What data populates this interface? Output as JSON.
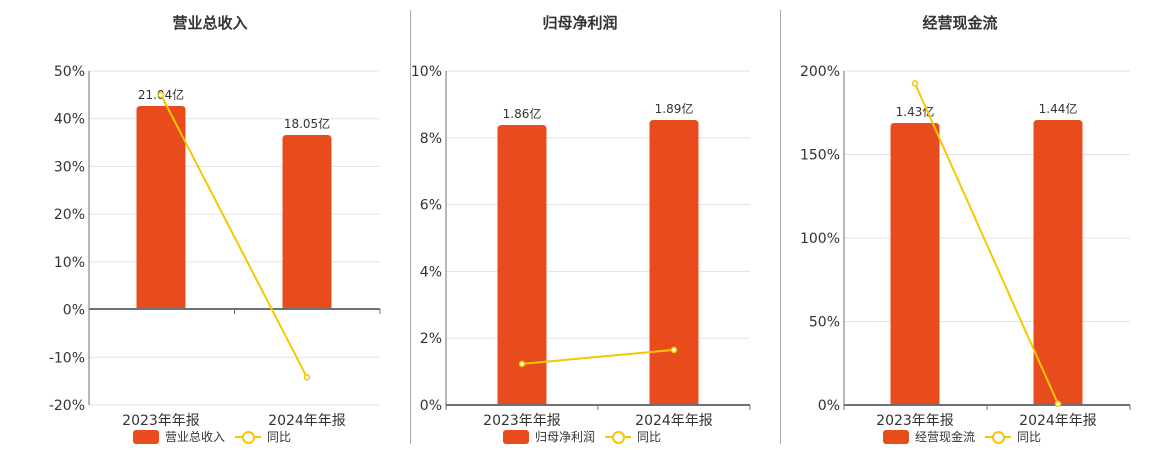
{
  "colors": {
    "bar": "#E84C1C",
    "line": "#F5C800",
    "grid": "#DDE3EE",
    "axis": "#6E7079",
    "divider": "#AAAAAA"
  },
  "chart_data": [
    {
      "type": "bar",
      "title": "营业总收入",
      "categories": [
        "2023年年报",
        "2024年年报"
      ],
      "series": [
        {
          "name": "营业总收入",
          "type": "bar",
          "values": [
            21.04,
            18.05
          ],
          "labels": [
            "21.04亿",
            "18.05亿"
          ],
          "unit": "亿"
        },
        {
          "name": "同比",
          "type": "line",
          "values": [
            45.0,
            -14.2
          ],
          "unit": "%"
        }
      ],
      "yaxis": {
        "ticks": [
          "50%",
          "40%",
          "30%",
          "20%",
          "10%",
          "0%",
          "-10%",
          "-20%"
        ],
        "min": -20,
        "max": 50
      },
      "legend": [
        "营业总收入",
        "同比"
      ],
      "legend_position": "bottom",
      "grid": true
    },
    {
      "type": "bar",
      "title": "归母净利润",
      "categories": [
        "2023年年报",
        "2024年年报"
      ],
      "series": [
        {
          "name": "归母净利润",
          "type": "bar",
          "values": [
            1.86,
            1.89
          ],
          "labels": [
            "1.86亿",
            "1.89亿"
          ],
          "unit": "亿"
        },
        {
          "name": "同比",
          "type": "line",
          "values": [
            1.23,
            1.65
          ],
          "unit": "%"
        }
      ],
      "yaxis": {
        "ticks": [
          "10%",
          "8%",
          "6%",
          "4%",
          "2%",
          "0%"
        ],
        "min": 0,
        "max": 10
      },
      "legend": [
        "归母净利润",
        "同比"
      ],
      "legend_position": "bottom",
      "grid": true
    },
    {
      "type": "bar",
      "title": "经营现金流",
      "categories": [
        "2023年年报",
        "2024年年报"
      ],
      "series": [
        {
          "name": "经营现金流",
          "type": "bar",
          "values": [
            1.43,
            1.44
          ],
          "labels": [
            "1.43亿",
            "1.44亿"
          ],
          "unit": "亿"
        },
        {
          "name": "同比",
          "type": "line",
          "values": [
            192.5,
            0.7
          ],
          "unit": "%"
        }
      ],
      "yaxis": {
        "ticks": [
          "200%",
          "150%",
          "100%",
          "50%",
          "0%"
        ],
        "min": 0,
        "max": 200
      },
      "legend": [
        "经营现金流",
        "同比"
      ],
      "legend_position": "bottom",
      "grid": true
    }
  ],
  "panels": [
    {
      "title": "营业总收入",
      "legend_bar": "营业总收入",
      "legend_line": "同比"
    },
    {
      "title": "归母净利润",
      "legend_bar": "归母净利润",
      "legend_line": "同比"
    },
    {
      "title": "经营现金流",
      "legend_bar": "经营现金流",
      "legend_line": "同比"
    }
  ]
}
